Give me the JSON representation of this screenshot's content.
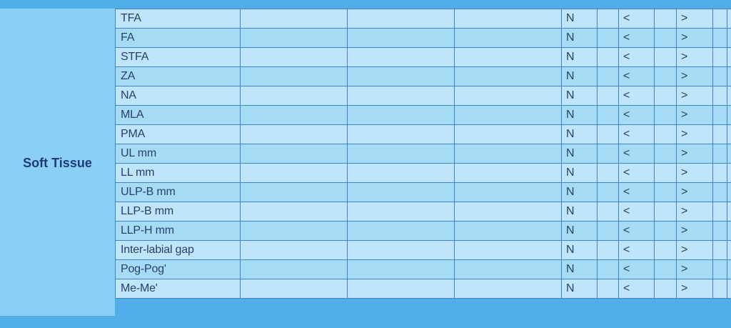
{
  "section": {
    "label": "Soft Tissue"
  },
  "rows": [
    {
      "name": "TFA",
      "n": "N",
      "lt": "<",
      "gt": ">"
    },
    {
      "name": "FA",
      "n": "N",
      "lt": "<",
      "gt": ">"
    },
    {
      "name": "STFA",
      "n": "N",
      "lt": "<",
      "gt": ">"
    },
    {
      "name": "ZA",
      "n": "N",
      "lt": "<",
      "gt": ">"
    },
    {
      "name": "NA",
      "n": "N",
      "lt": "<",
      "gt": ">"
    },
    {
      "name": "MLA",
      "n": "N",
      "lt": "<",
      "gt": ">"
    },
    {
      "name": "PMA",
      "n": "N",
      "lt": "<",
      "gt": ">"
    },
    {
      "name": "UL mm",
      "n": "N",
      "lt": "<",
      "gt": ">"
    },
    {
      "name": "LL mm",
      "n": "N",
      "lt": "<",
      "gt": ">"
    },
    {
      "name": "ULP-B mm",
      "n": "N",
      "lt": "<",
      "gt": ">"
    },
    {
      "name": "LLP-B mm",
      "n": "N",
      "lt": "<",
      "gt": ">"
    },
    {
      "name": "LLP-H mm",
      "n": "N",
      "lt": "<",
      "gt": ">"
    },
    {
      "name": "Inter-labial gap",
      "n": "N",
      "lt": "<",
      "gt": ">"
    },
    {
      "name": "Pog-Pog'",
      "n": "N",
      "lt": "<",
      "gt": ">"
    },
    {
      "name": "Me-Me'",
      "n": "N",
      "lt": "<",
      "gt": ">"
    }
  ]
}
